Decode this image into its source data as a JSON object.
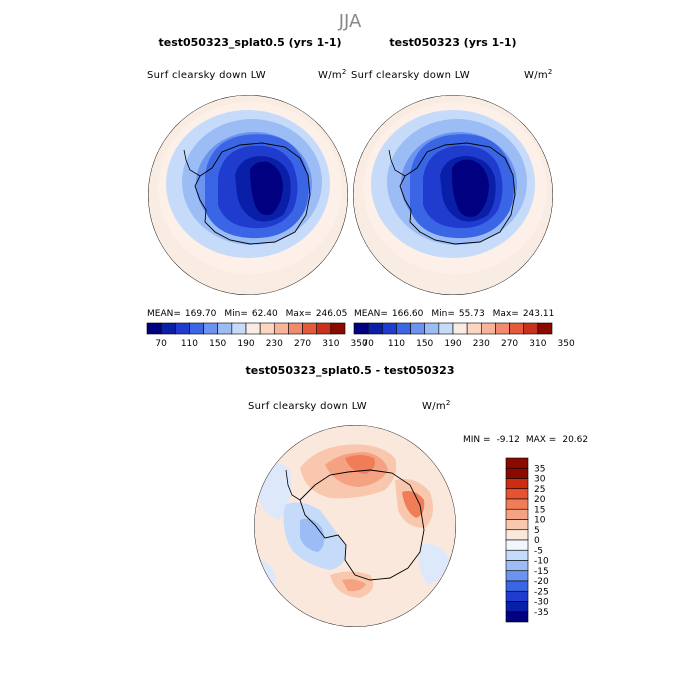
{
  "figure": {
    "title": "JJA"
  },
  "colors": {
    "levels_top": [
      "#000080",
      "#0a1fa8",
      "#1f3ccf",
      "#3a66e6",
      "#6b93ef",
      "#9bbcf4",
      "#c6dbf9",
      "#f9ece3",
      "#fcd6c1",
      "#f9b39a",
      "#f28b6e",
      "#e65a3c",
      "#c8321d",
      "#8a0a00"
    ],
    "levels_diff": [
      "#000080",
      "#0a1fa8",
      "#1f3ccf",
      "#3a66e6",
      "#6b93ef",
      "#9bbcf4",
      "#c6dbf9",
      "#f2f6fd",
      "#fbe8dc",
      "#f9c7ae",
      "#f5a283",
      "#ef7d57",
      "#e65330",
      "#cc2d12",
      "#8a0a00"
    ],
    "land_outline": "#000000"
  },
  "chart_data": [
    {
      "type": "heatmap",
      "title": "test050323_splat0.5 (yrs 1-1)",
      "variable": "Surf clearsky down LW",
      "units": "W/m",
      "units_sup": "2",
      "projection": "south polar stereographic",
      "stats": {
        "mean_label": "MEAN=",
        "mean": "169.70",
        "min_label": "Min=",
        "min": "62.40",
        "max_label": "Max=",
        "max": "246.05"
      },
      "colorbar": {
        "orientation": "horizontal",
        "ticks": [
          "70",
          "110",
          "150",
          "190",
          "230",
          "270",
          "310",
          "350"
        ],
        "levels": 14
      }
    },
    {
      "type": "heatmap",
      "title": "test050323 (yrs 1-1)",
      "variable": "Surf clearsky down LW",
      "units": "W/m",
      "units_sup": "2",
      "projection": "south polar stereographic",
      "stats": {
        "mean_label": "MEAN=",
        "mean": "166.60",
        "min_label": "Min=",
        "min": "55.73",
        "max_label": "Max=",
        "max": "243.11"
      },
      "colorbar": {
        "orientation": "horizontal",
        "ticks": [
          "70",
          "110",
          "150",
          "190",
          "230",
          "270",
          "310",
          "350"
        ],
        "levels": 14
      }
    },
    {
      "type": "heatmap",
      "title": "test050323_splat0.5 - test050323",
      "variable": "Surf clearsky down LW",
      "units": "W/m",
      "units_sup": "2",
      "projection": "south polar stereographic",
      "stats": {
        "min_label": "MIN =",
        "min": "-9.12",
        "max_label": "MAX =",
        "max": "20.62"
      },
      "colorbar": {
        "orientation": "vertical",
        "ticks": [
          "35",
          "30",
          "25",
          "20",
          "15",
          "10",
          "5",
          "0",
          "-5",
          "-10",
          "-15",
          "-20",
          "-25",
          "-30",
          "-35"
        ],
        "levels": 15
      }
    }
  ]
}
